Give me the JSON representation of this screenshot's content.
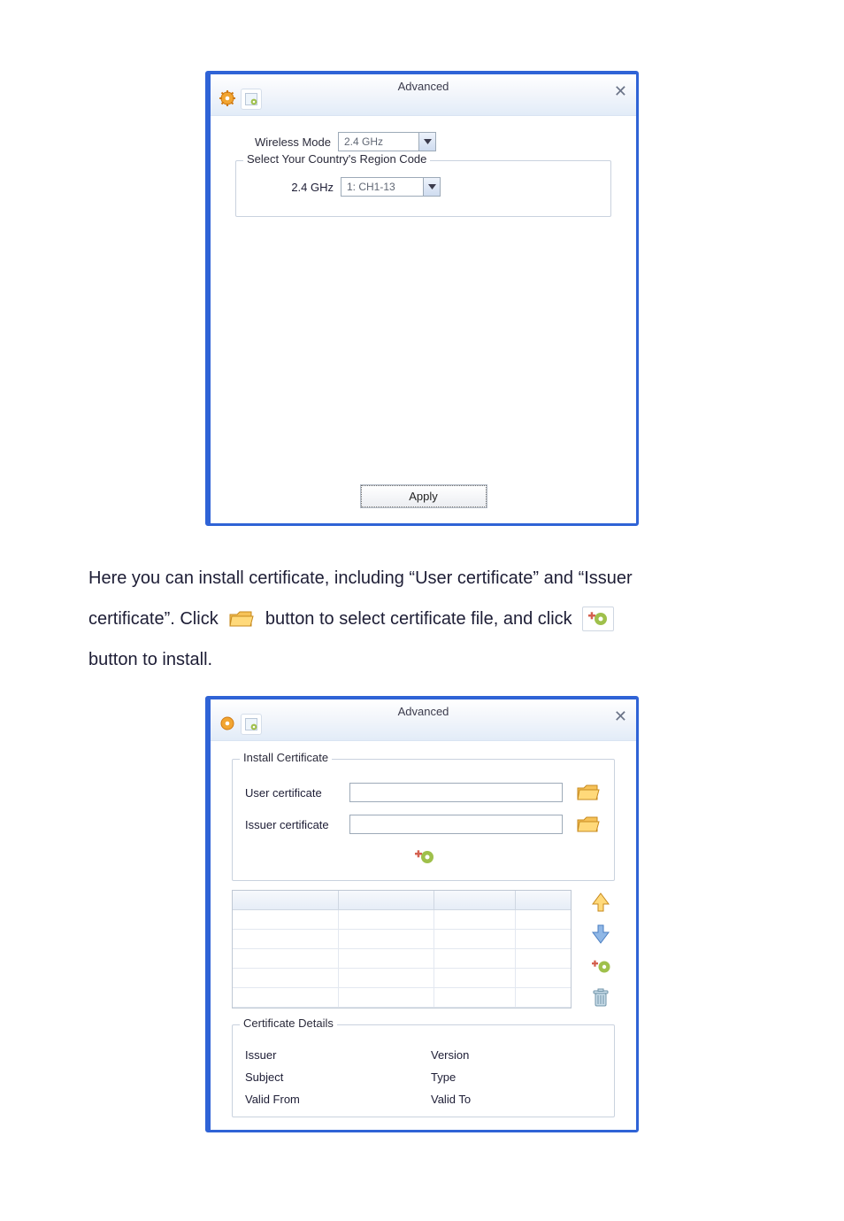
{
  "colors": {
    "window_border": "#2f63d6",
    "titlebar_grad_top": "#ffffff",
    "titlebar_grad_bottom": "#e2ecf8",
    "text_primary": "#1d1d35",
    "text_dim": "#606774",
    "field_border": "#9daab8",
    "group_border": "#c9d2de",
    "icon_orange": "#f2a531",
    "icon_orange_dark": "#d07a12",
    "icon_green": "#9fc04b",
    "icon_blue": "#5aa0d6",
    "icon_trash": "#9db7c8",
    "close_x": "#6b7488"
  },
  "window1": {
    "title": "Advanced",
    "wireless_mode": {
      "label": "Wireless Mode",
      "value": "2.4 GHz"
    },
    "region_group": {
      "legend": "Select Your Country's Region Code",
      "band_label": "2.4 GHz",
      "band_value": "1: CH1-13"
    },
    "apply_label": "Apply"
  },
  "paragraph": {
    "line1_a": "Here  you  can  install  certificate,  including  “User  certificate”  and  “Issuer",
    "line2_a": "certificate”.  Click",
    "line2_b": "button  to  select  certificate  file,  and  click",
    "line3": "button to install."
  },
  "window2": {
    "title": "Advanced",
    "install_group": {
      "legend": "Install Certificate",
      "user_label": "User certificate",
      "issuer_label": "Issuer certificate"
    },
    "details_group": {
      "legend": "Certificate Details",
      "issuer": "Issuer",
      "version": "Version",
      "subject": "Subject",
      "type": "Type",
      "valid_from": "Valid From",
      "valid_to": "Valid To"
    }
  },
  "table": {
    "empty_rows": 5,
    "cols": 4
  }
}
